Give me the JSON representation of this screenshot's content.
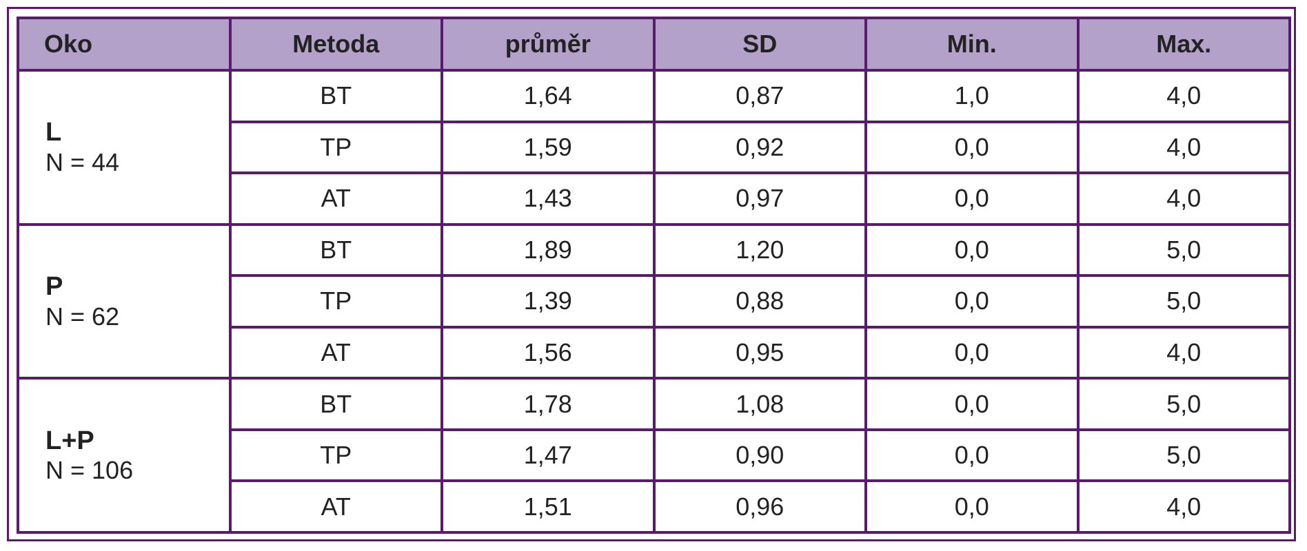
{
  "table": {
    "header": [
      "Oko",
      "Metoda",
      "průměr",
      "SD",
      "Min.",
      "Max."
    ],
    "groups": [
      {
        "eye": "L",
        "n": "N = 44",
        "rows": [
          [
            "BT",
            "1,64",
            "0,87",
            "1,0",
            "4,0"
          ],
          [
            "TP",
            "1,59",
            "0,92",
            "0,0",
            "4,0"
          ],
          [
            "AT",
            "1,43",
            "0,97",
            "0,0",
            "4,0"
          ]
        ]
      },
      {
        "eye": "P",
        "n": "N = 62",
        "rows": [
          [
            "BT",
            "1,89",
            "1,20",
            "0,0",
            "5,0"
          ],
          [
            "TP",
            "1,39",
            "0,88",
            "0,0",
            "5,0"
          ],
          [
            "AT",
            "1,56",
            "0,95",
            "0,0",
            "4,0"
          ]
        ]
      },
      {
        "eye": "L+P",
        "n": "N = 106",
        "rows": [
          [
            "BT",
            "1,78",
            "1,08",
            "0,0",
            "5,0"
          ],
          [
            "TP",
            "1,47",
            "0,90",
            "0,0",
            "5,0"
          ],
          [
            "AT",
            "1,51",
            "0,96",
            "0,0",
            "4,0"
          ]
        ]
      }
    ]
  }
}
